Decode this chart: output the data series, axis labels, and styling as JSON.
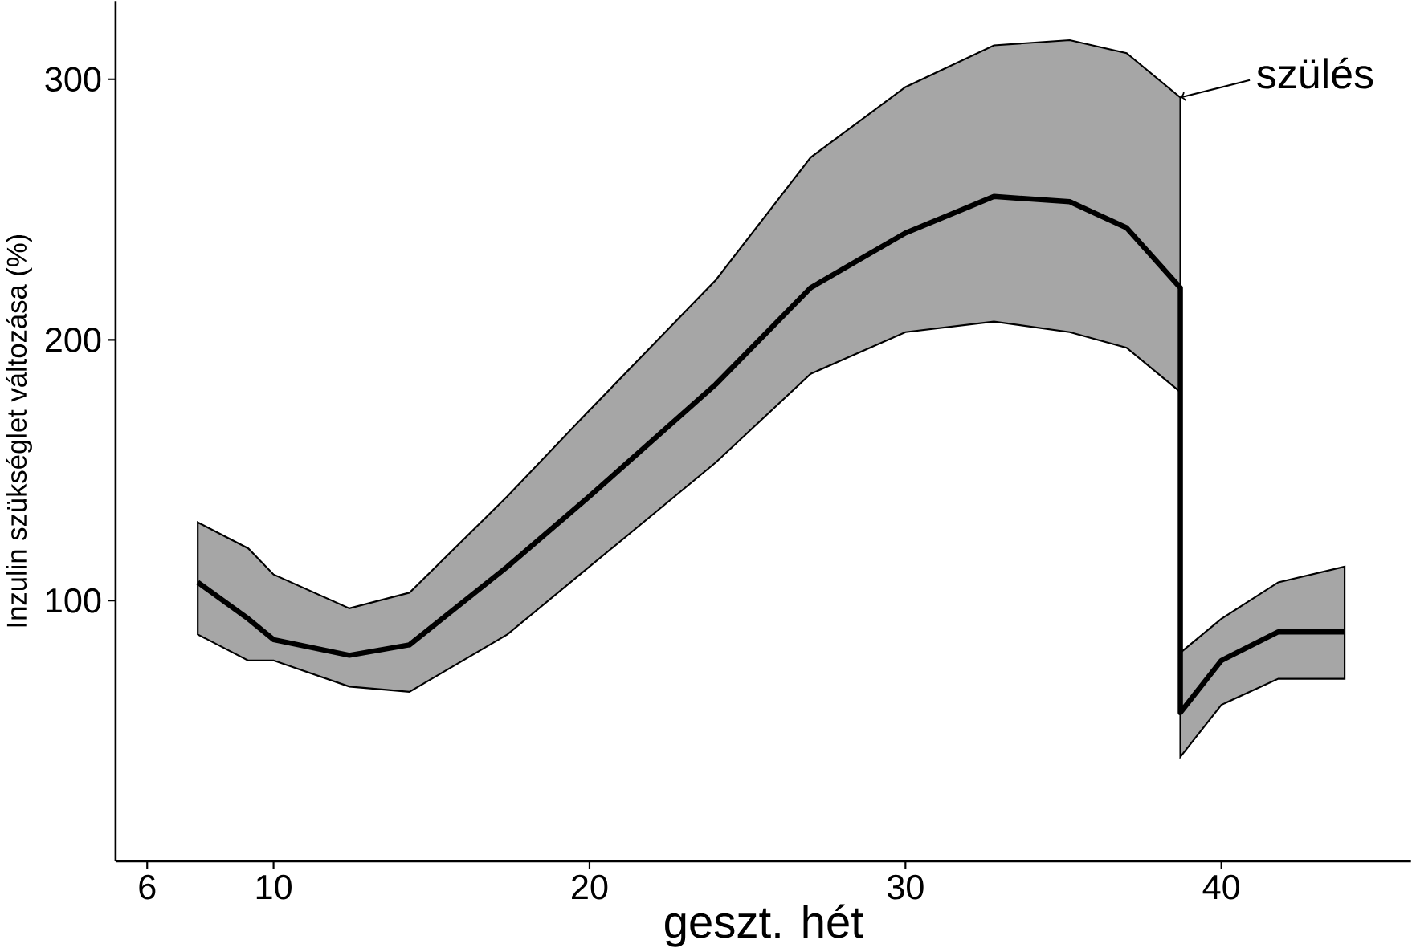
{
  "chart_data": {
    "type": "line",
    "xlabel": "geszt. hét",
    "ylabel": "Inzulin szükséglet változása (%)",
    "xlim": [
      5,
      46
    ],
    "xticks": [
      6,
      10,
      20,
      30,
      40
    ],
    "ylim": [
      0,
      330
    ],
    "yticks": [
      100,
      200,
      300
    ],
    "grid": false,
    "marker": "none",
    "series": [
      {
        "color": "#000000",
        "x": [
          7.6,
          9.2,
          10,
          12.4,
          14.3,
          17.4,
          20,
          24,
          27,
          30,
          32.8,
          35.2,
          37,
          38.7,
          38.7,
          40,
          41.8,
          43.9
        ],
        "values": [
          107,
          93,
          85,
          79,
          83,
          113,
          140,
          183,
          220,
          241,
          255,
          253,
          243,
          220,
          57,
          77,
          88,
          88
        ],
        "lower": [
          87,
          77,
          77,
          67,
          65,
          87,
          113,
          153,
          187,
          203,
          207,
          203,
          197,
          180,
          40,
          60,
          70,
          70
        ],
        "upper": [
          130,
          120,
          110,
          97,
          103,
          140,
          173,
          223,
          270,
          297,
          313,
          315,
          310,
          293,
          80,
          93,
          107,
          113
        ]
      }
    ],
    "annotations": [
      {
        "text": "szülés",
        "x": 38.7,
        "y": 293
      }
    ]
  }
}
